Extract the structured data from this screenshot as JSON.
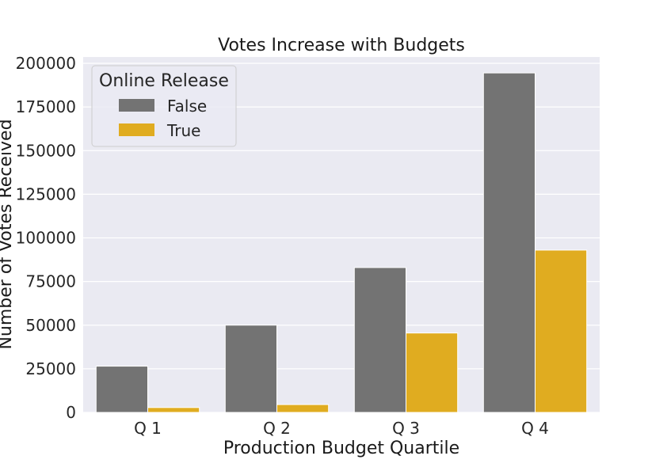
{
  "chart_data": {
    "type": "bar",
    "title": "Votes Increase with Budgets",
    "xlabel": "Production Budget Quartile",
    "ylabel": "Number of Votes Received",
    "categories": [
      "Q 1",
      "Q 2",
      "Q 3",
      "Q 4"
    ],
    "series": [
      {
        "name": "False",
        "color": "#737373",
        "values": [
          26500,
          50000,
          83000,
          194500
        ]
      },
      {
        "name": "True",
        "color": "#e0ac20",
        "values": [
          2800,
          4500,
          45500,
          93000
        ]
      }
    ],
    "ylim": [
      0,
      200000
    ],
    "yticks": [
      "0",
      "25000",
      "50000",
      "75000",
      "100000",
      "125000",
      "150000",
      "175000",
      "200000"
    ],
    "grid": true,
    "plot_background": "#eaeaf2",
    "legend": {
      "title": "Online Release",
      "position": "upper-left"
    }
  }
}
